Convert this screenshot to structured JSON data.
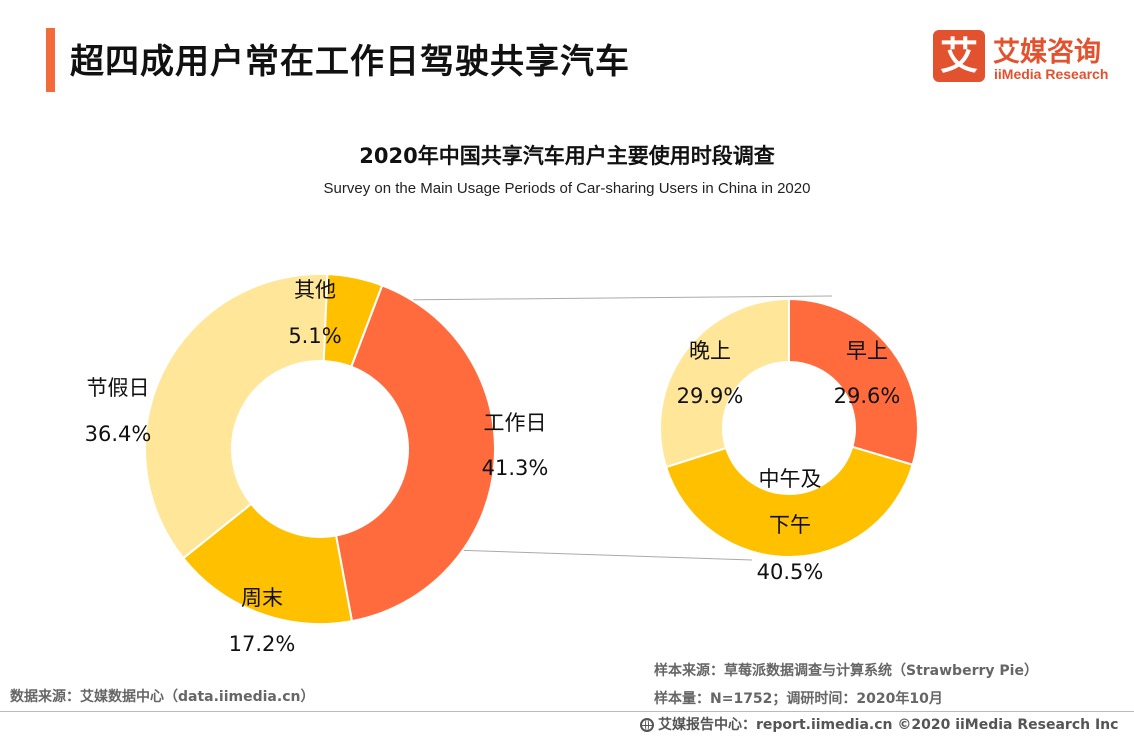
{
  "header": {
    "title": "超四成用户常在工作日驾驶共享汽车",
    "accent_color": "#F26B3A"
  },
  "logo": {
    "mark": "艾",
    "name_cn": "艾媒咨询",
    "name_en": "iiMedia Research",
    "color": "#E2522E"
  },
  "footer": {
    "data_source": "数据来源：艾媒数据中心（data.iimedia.cn）",
    "sample_source": "样本来源：草莓派数据调查与计算系统（Strawberry Pie）",
    "sample_info": "样本量：N=1752；调研时间：2020年10月",
    "credit": "艾媒报告中心：report.iimedia.cn ©2020  iiMedia Research  Inc"
  },
  "chart_data": [
    {
      "type": "pie",
      "title": "2020年中国共享汽车用户主要使用时段调查",
      "subtitle": "Survey on the Main Usage Periods of Car-sharing Users in China in 2020",
      "donut": true,
      "slices": [
        {
          "label": "工作日",
          "value": 41.3,
          "display": "41.3%",
          "color": "#FF6B3D"
        },
        {
          "label": "周末",
          "value": 17.2,
          "display": "17.2%",
          "color": "#FFC000"
        },
        {
          "label": "节假日",
          "value": 36.4,
          "display": "36.4%",
          "color": "#FFE699"
        },
        {
          "label": "其他",
          "value": 5.1,
          "display": "5.1%",
          "color": "#FFC000"
        }
      ]
    },
    {
      "type": "pie",
      "donut": true,
      "breakdown_of": "工作日",
      "slices": [
        {
          "label": "早上",
          "value": 29.6,
          "display": "29.6%",
          "color": "#FF6B3D"
        },
        {
          "label": "中午及下午",
          "label_lines": [
            "中午及",
            "下午"
          ],
          "value": 40.5,
          "display": "40.5%",
          "color": "#FFC000"
        },
        {
          "label": "晚上",
          "value": 29.9,
          "display": "29.9%",
          "color": "#FFE699"
        }
      ]
    }
  ]
}
